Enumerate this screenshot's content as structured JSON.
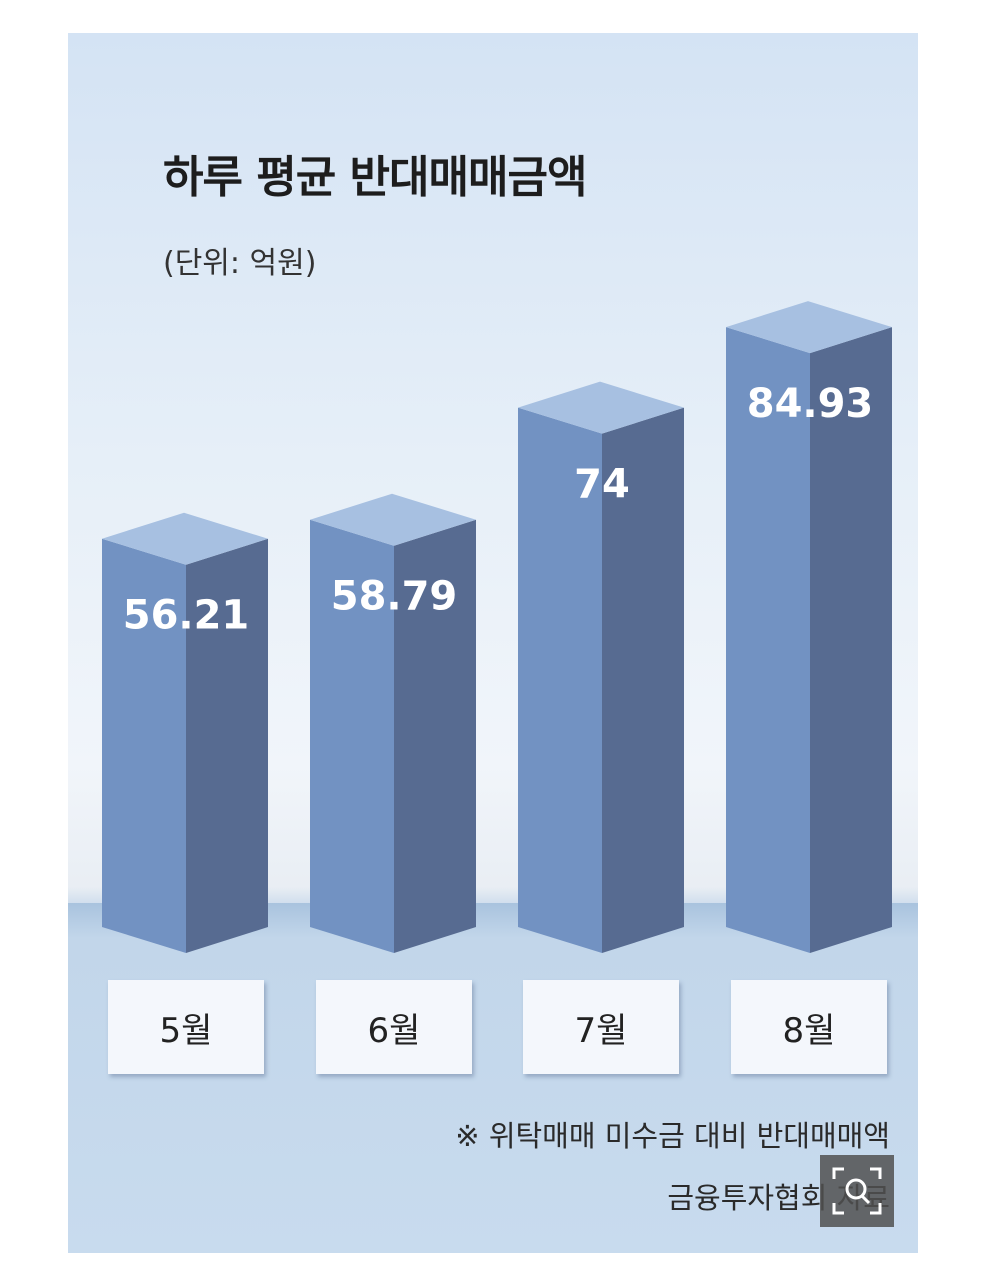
{
  "chart_data": {
    "type": "bar",
    "title": "하루 평균 반대매매금액",
    "subtitle": "(단위: 억원)",
    "categories": [
      "5월",
      "6월",
      "7월",
      "8월"
    ],
    "values": [
      56.21,
      58.79,
      74,
      84.93
    ],
    "value_labels": [
      "56.21",
      "58.79",
      "74",
      "84.93"
    ],
    "colors": {
      "front": "#7292c2",
      "side": "#576b91",
      "top": "#a7c0e1"
    }
  },
  "note": "※ 위탁매매 미수금 대비 반대매매액",
  "source": "금융투자협회 자료"
}
